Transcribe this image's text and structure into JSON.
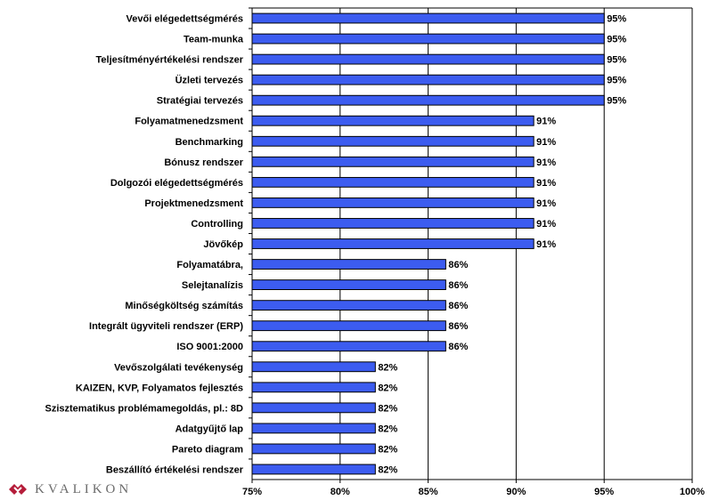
{
  "chart_data": {
    "type": "bar",
    "orientation": "horizontal",
    "categories": [
      "Vevői elégedettségmérés",
      "Team-munka",
      "Teljesítményértékelési rendszer",
      "Üzleti tervezés",
      "Stratégiai tervezés",
      "Folyamatmenedzsment",
      "Benchmarking",
      "Bónusz rendszer",
      "Dolgozói elégedettségmérés",
      "Projektmenedzsment",
      "Controlling",
      "Jövőkép",
      "Folyamatábra,",
      "Selejtanalízis",
      "Minőségköltség számítás",
      "Integrált ügyviteli rendszer (ERP)",
      "ISO 9001:2000",
      "Vevőszolgálati tevékenység",
      "KAIZEN, KVP, Folyamatos fejlesztés",
      "Szisztematikus problémamegoldás, pl.: 8D",
      "Adatgyűjtő lap",
      "Pareto diagram",
      "Beszállító értékelési rendszer"
    ],
    "values": [
      95,
      95,
      95,
      95,
      95,
      91,
      91,
      91,
      91,
      91,
      91,
      91,
      86,
      86,
      86,
      86,
      86,
      82,
      82,
      82,
      82,
      82,
      82
    ],
    "value_labels": [
      "95%",
      "95%",
      "95%",
      "95%",
      "95%",
      "91%",
      "91%",
      "91%",
      "91%",
      "91%",
      "91%",
      "91%",
      "86%",
      "86%",
      "86%",
      "86%",
      "86%",
      "82%",
      "82%",
      "82%",
      "82%",
      "82%",
      "82%"
    ],
    "xlim": [
      75,
      100
    ],
    "x_ticks": [
      75,
      80,
      85,
      90,
      95,
      100
    ],
    "x_tick_labels": [
      "75%",
      "80%",
      "85%",
      "90%",
      "95%",
      "100%"
    ],
    "grid": true,
    "bar_color": "#3c5cf0",
    "title": "",
    "xlabel": "",
    "ylabel": ""
  },
  "logo": {
    "text": "KVALIKON",
    "icon": "kvalikon-s-logo-icon",
    "color": "#b51d3a"
  }
}
